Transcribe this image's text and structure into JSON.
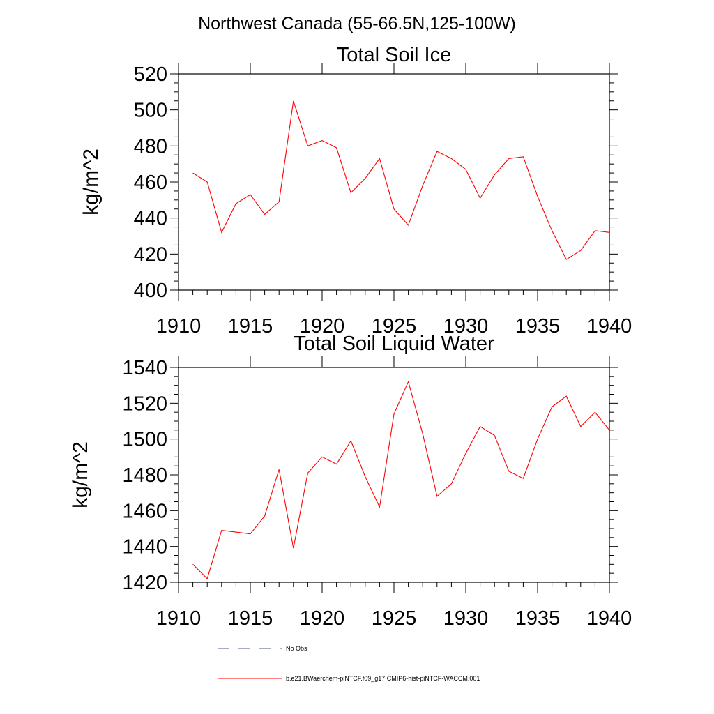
{
  "supertitle": "Northwest Canada (55-66.5N,125-100W)",
  "chart_data": [
    {
      "type": "line",
      "title": "Total Soil Ice",
      "ylabel": "kg/m^2",
      "xlabel": "",
      "xlim": [
        1910,
        1940
      ],
      "ylim": [
        400,
        520
      ],
      "xticks": [
        1910,
        1915,
        1920,
        1925,
        1930,
        1935,
        1940
      ],
      "yticks": [
        400,
        420,
        440,
        460,
        480,
        500,
        520
      ],
      "grid": false,
      "series": [
        {
          "name": "b.e21.BWaerchem-piNTCF.f09_g17.CMIP6-hist-piNTCF-WACCM.001",
          "color": "#ff0000",
          "x": [
            1911,
            1912,
            1913,
            1914,
            1915,
            1916,
            1917,
            1918,
            1919,
            1920,
            1921,
            1922,
            1923,
            1924,
            1925,
            1926,
            1927,
            1928,
            1929,
            1930,
            1931,
            1932,
            1933,
            1934,
            1935,
            1936,
            1937,
            1938,
            1939,
            1940
          ],
          "y": [
            465,
            460,
            432,
            448,
            453,
            442,
            449,
            505,
            480,
            483,
            479,
            454,
            462,
            473,
            445,
            436,
            458,
            477,
            473,
            467,
            451,
            464,
            473,
            474,
            452,
            433,
            417,
            422,
            433,
            432
          ]
        }
      ]
    },
    {
      "type": "line",
      "title": "Total Soil Liquid Water",
      "ylabel": "kg/m^2",
      "xlabel": "",
      "xlim": [
        1910,
        1940
      ],
      "ylim": [
        1420,
        1540
      ],
      "xticks": [
        1910,
        1915,
        1920,
        1925,
        1930,
        1935,
        1940
      ],
      "yticks": [
        1420,
        1440,
        1460,
        1480,
        1500,
        1520,
        1540
      ],
      "grid": false,
      "series": [
        {
          "name": "b.e21.BWaerchem-piNTCF.f09_g17.CMIP6-hist-piNTCF-WACCM.001",
          "color": "#ff0000",
          "x": [
            1911,
            1912,
            1913,
            1914,
            1915,
            1916,
            1917,
            1918,
            1919,
            1920,
            1921,
            1922,
            1923,
            1924,
            1925,
            1926,
            1927,
            1928,
            1929,
            1930,
            1931,
            1932,
            1933,
            1934,
            1935,
            1936,
            1937,
            1938,
            1939,
            1940
          ],
          "y": [
            1430,
            1422,
            1449,
            1448,
            1447,
            1457,
            1483,
            1439,
            1481,
            1490,
            1486,
            1499,
            1479,
            1462,
            1514,
            1532,
            1503,
            1468,
            1475,
            1492,
            1507,
            1502,
            1482,
            1478,
            1500,
            1518,
            1524,
            1507,
            1515,
            1505
          ]
        }
      ]
    }
  ],
  "legend": {
    "placement": "bottom-center",
    "items": [
      {
        "label": "No Obs",
        "color": "#4a5a8a",
        "style": "dashed"
      },
      {
        "label": "b.e21.BWaerchem-piNTCF.f09_g17.CMIP6-hist-piNTCF-WACCM.001",
        "color": "#ff0000",
        "style": "solid"
      }
    ]
  }
}
